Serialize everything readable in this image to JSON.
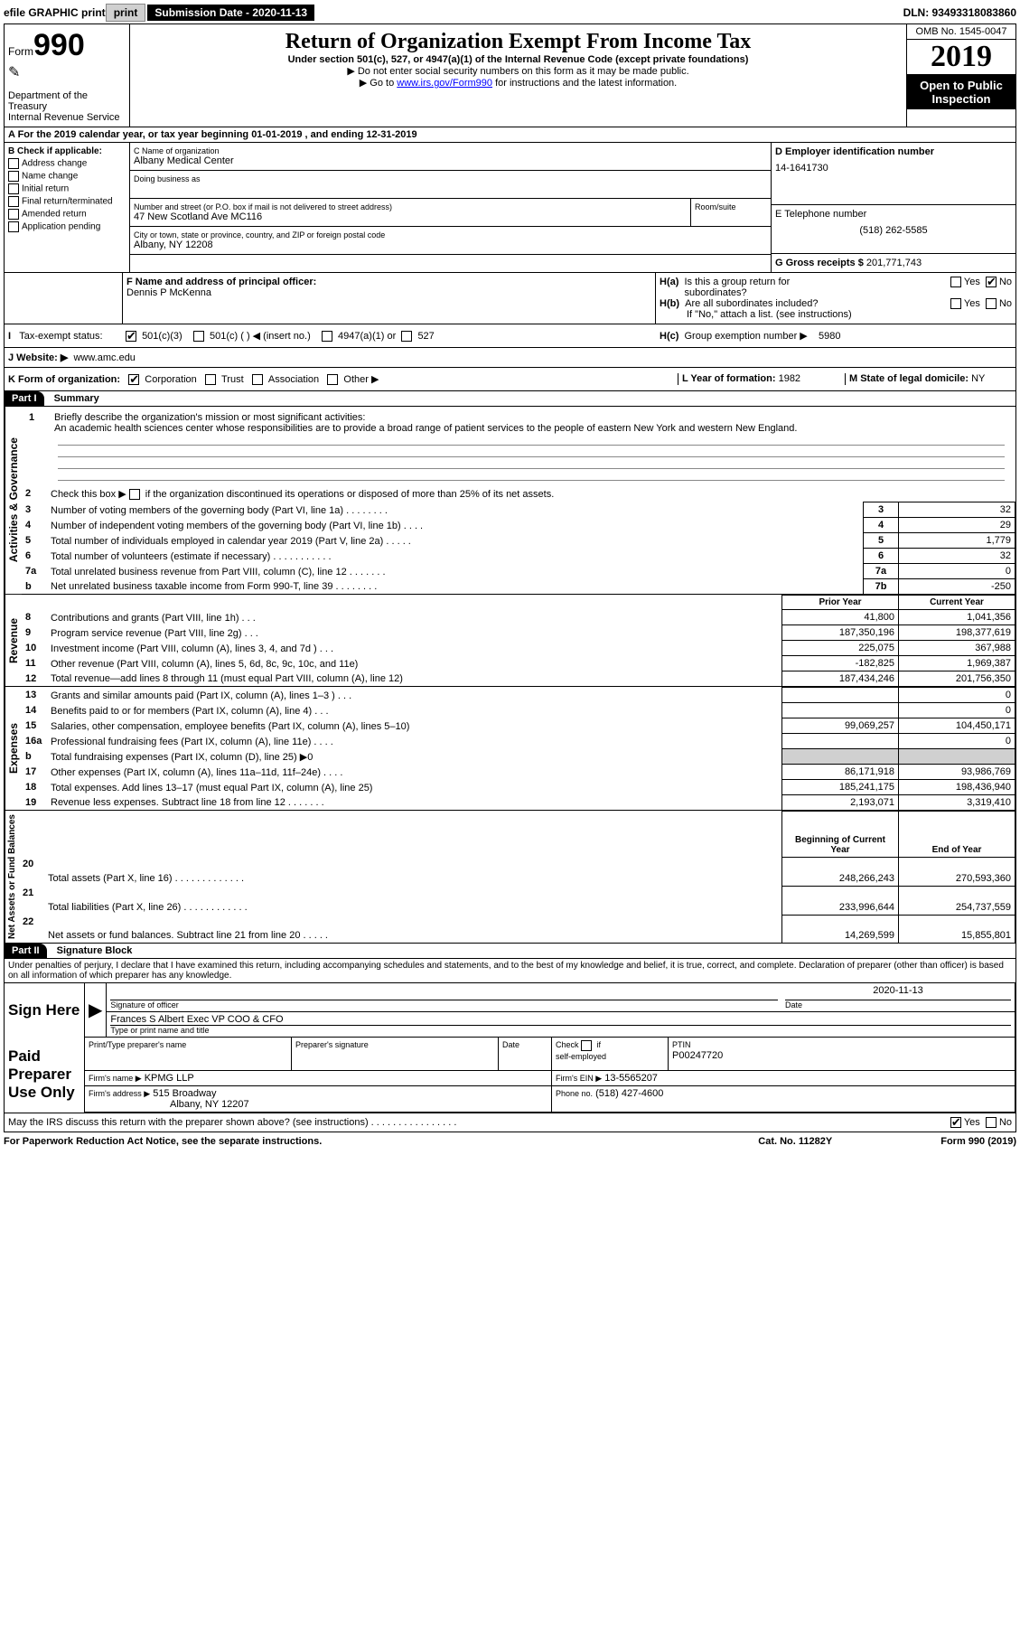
{
  "topbar": {
    "efile": "efile GRAPHIC print",
    "submission_label": "Submission Date - 2020-11-13",
    "dln": "DLN: 93493318083860"
  },
  "header": {
    "form_prefix": "Form",
    "form_number": "990",
    "dept": "Department of the Treasury",
    "irs": "Internal Revenue Service",
    "title": "Return of Organization Exempt From Income Tax",
    "sub1": "Under section 501(c), 527, or 4947(a)(1) of the Internal Revenue Code (except private foundations)",
    "sub2": "▶ Do not enter social security numbers on this form as it may be made public.",
    "sub3_pre": "▶ Go to ",
    "sub3_link": "www.irs.gov/Form990",
    "sub3_post": " for instructions and the latest information.",
    "omb": "OMB No. 1545-0047",
    "year": "2019",
    "inspection": "Open to Public Inspection"
  },
  "row_a": "A For the 2019 calendar year, or tax year beginning 01-01-2019    , and ending 12-31-2019",
  "section_b": {
    "label": "B Check if applicable:",
    "opts": [
      "Address change",
      "Name change",
      "Initial return",
      "Final return/terminated",
      "Amended return",
      "Application pending"
    ]
  },
  "section_c": {
    "name_label": "C Name of organization",
    "name": "Albany Medical Center",
    "dba_label": "Doing business as",
    "addr_label": "Number and street (or P.O. box if mail is not delivered to street address)",
    "room_label": "Room/suite",
    "addr": "47 New Scotland Ave MC116",
    "city_label": "City or town, state or province, country, and ZIP or foreign postal code",
    "city": "Albany, NY  12208"
  },
  "section_d": {
    "ein_label": "D Employer identification number",
    "ein": "14-1641730",
    "phone_label": "E Telephone number",
    "phone": "(518) 262-5585",
    "gross_label": "G Gross receipts $",
    "gross": "201,771,743"
  },
  "section_f": {
    "label": "F  Name and address of principal officer:",
    "name": "Dennis P McKenna"
  },
  "section_h": {
    "ha": "H(a)  Is this a group return for subordinates?",
    "hb": "H(b)  Are all subordinates included?",
    "hb_note": "If \"No,\" attach a list. (see instructions)",
    "hc": "H(c)  Group exemption number ▶",
    "hc_val": "5980"
  },
  "tax_status": {
    "label": "Tax-exempt status:",
    "opt1": "501(c)(3)",
    "opt2": "501(c) (    ) ◀ (insert no.)",
    "opt3": "4947(a)(1) or",
    "opt4": "527"
  },
  "section_j": {
    "label": "J    Website: ▶",
    "val": "www.amc.edu"
  },
  "section_k": {
    "label": "K Form of organization:",
    "opts": [
      "Corporation",
      "Trust",
      "Association",
      "Other ▶"
    ],
    "l_label": "L Year of formation:",
    "l_val": "1982",
    "m_label": "M State of legal domicile:",
    "m_val": "NY"
  },
  "part1": {
    "label": "Part I",
    "title": "Summary",
    "q1_label": "1",
    "q1": "Briefly describe the organization's mission or most significant activities:",
    "q1_ans": "An academic health sciences center whose responsibilities are to provide a broad range of patient services to the people of eastern New York and western New England.",
    "q2_label": "2",
    "q2": "Check this box ▶       if the organization discontinued its operations or disposed of more than 25% of its net assets.",
    "lines_gov": [
      {
        "n": "3",
        "d": "Number of voting members of the governing body (Part VI, line 1a)  .    .    .    .    .    .    .    .",
        "b": "3",
        "v": "32"
      },
      {
        "n": "4",
        "d": "Number of independent voting members of the governing body (Part VI, line 1b)  .    .    .    .",
        "b": "4",
        "v": "29"
      },
      {
        "n": "5",
        "d": "Total number of individuals employed in calendar year 2019 (Part V, line 2a)  .    .    .    .    .",
        "b": "5",
        "v": "1,779"
      },
      {
        "n": "6",
        "d": "Total number of volunteers (estimate if necessary)    .    .    .    .    .    .    .    .    .    .    .",
        "b": "6",
        "v": "32"
      },
      {
        "n": "7a",
        "d": "Total unrelated business revenue from Part VIII, column (C), line 12   .    .    .    .    .    .    .",
        "b": "7a",
        "v": "0"
      },
      {
        "n": "b",
        "d": "Net unrelated business taxable income from Form 990-T, line 39    .    .    .    .    .    .    .    .",
        "b": "7b",
        "v": "-250"
      }
    ],
    "col_prior": "Prior Year",
    "col_current": "Current Year",
    "lines_rev": [
      {
        "n": "8",
        "d": "Contributions and grants (Part VIII, line 1h)    .    .    .",
        "p": "41,800",
        "c": "1,041,356"
      },
      {
        "n": "9",
        "d": "Program service revenue (Part VIII, line 2g)    .    .    .",
        "p": "187,350,196",
        "c": "198,377,619"
      },
      {
        "n": "10",
        "d": "Investment income (Part VIII, column (A), lines 3, 4, and 7d )    .    .    .",
        "p": "225,075",
        "c": "367,988"
      },
      {
        "n": "11",
        "d": "Other revenue (Part VIII, column (A), lines 5, 6d, 8c, 9c, 10c, and 11e)",
        "p": "-182,825",
        "c": "1,969,387"
      },
      {
        "n": "12",
        "d": "Total revenue—add lines 8 through 11 (must equal Part VIII, column (A), line 12)",
        "p": "187,434,246",
        "c": "201,756,350"
      }
    ],
    "lines_exp": [
      {
        "n": "13",
        "d": "Grants and similar amounts paid (Part IX, column (A), lines 1–3 )  .    .    .",
        "p": "",
        "c": "0"
      },
      {
        "n": "14",
        "d": "Benefits paid to or for members (Part IX, column (A), line 4)  .    .    .",
        "p": "",
        "c": "0"
      },
      {
        "n": "15",
        "d": "Salaries, other compensation, employee benefits (Part IX, column (A), lines 5–10)",
        "p": "99,069,257",
        "c": "104,450,171"
      },
      {
        "n": "16a",
        "d": "Professional fundraising fees (Part IX, column (A), line 11e)  .    .    .    .",
        "p": "",
        "c": "0"
      },
      {
        "n": "b",
        "d": "Total fundraising expenses (Part IX, column (D), line 25) ▶0",
        "p": "gray",
        "c": "gray"
      },
      {
        "n": "17",
        "d": "Other expenses (Part IX, column (A), lines 11a–11d, 11f–24e)  .    .    .    .",
        "p": "86,171,918",
        "c": "93,986,769"
      },
      {
        "n": "18",
        "d": "Total expenses. Add lines 13–17 (must equal Part IX, column (A), line 25)",
        "p": "185,241,175",
        "c": "198,436,940"
      },
      {
        "n": "19",
        "d": "Revenue less expenses. Subtract line 18 from line 12  .    .    .    .    .    .    .",
        "p": "2,193,071",
        "c": "3,319,410"
      }
    ],
    "col_begin": "Beginning of Current Year",
    "col_end": "End of Year",
    "lines_net": [
      {
        "n": "20",
        "d": "Total assets (Part X, line 16)  .    .    .    .    .    .    .    .    .    .    .    .    .",
        "p": "248,266,243",
        "c": "270,593,360"
      },
      {
        "n": "21",
        "d": "Total liabilities (Part X, line 26)  .    .    .    .    .    .    .    .    .    .    .    .",
        "p": "233,996,644",
        "c": "254,737,559"
      },
      {
        "n": "22",
        "d": "Net assets or fund balances. Subtract line 21 from line 20  .    .    .    .    .",
        "p": "14,269,599",
        "c": "15,855,801"
      }
    ],
    "vert_gov": "Activities & Governance",
    "vert_rev": "Revenue",
    "vert_exp": "Expenses",
    "vert_net": "Net Assets or Fund Balances"
  },
  "part2": {
    "label": "Part II",
    "title": "Signature Block",
    "decl": "Under penalties of perjury, I declare that I have examined this return, including accompanying schedules and statements, and to the best of my knowledge and belief, it is true, correct, and complete. Declaration of preparer (other than officer) is based on all information of which preparer has any knowledge.",
    "sign_here": "Sign Here",
    "sig_officer": "Signature of officer",
    "sig_date": "2020-11-13",
    "date_label": "Date",
    "officer_name": "Frances S Albert  Exec VP COO & CFO",
    "officer_type": "Type or print name and title",
    "paid": "Paid Preparer Use Only",
    "prep_name_label": "Print/Type preparer's name",
    "prep_sig_label": "Preparer's signature",
    "check_label": "Check        if self-employed",
    "ptin_label": "PTIN",
    "ptin": "P00247720",
    "firm_name_label": "Firm's name    ▶",
    "firm_name": "KPMG LLP",
    "firm_ein_label": "Firm's EIN ▶",
    "firm_ein": "13-5565207",
    "firm_addr_label": "Firm's address ▶",
    "firm_addr1": "515 Broadway",
    "firm_addr2": "Albany, NY  12207",
    "firm_phone_label": "Phone no.",
    "firm_phone": "(518) 427-4600",
    "discuss": "May the IRS discuss this return with the preparer shown above? (see instructions)    .    .    .    .    .    .    .    .    .    .    .    .    .    .    .    .",
    "yes": "Yes",
    "no": "No"
  },
  "footer": {
    "left": "For Paperwork Reduction Act Notice, see the separate instructions.",
    "mid": "Cat. No. 11282Y",
    "right": "Form 990 (2019)"
  }
}
